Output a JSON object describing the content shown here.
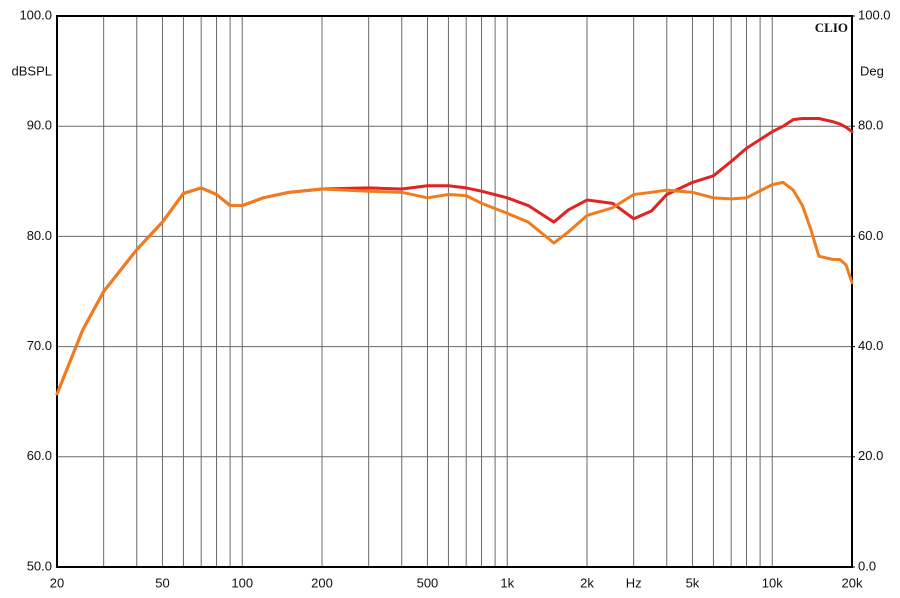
{
  "chart_data": {
    "type": "line",
    "annotation": "CLIO",
    "y_label": "dBSPL",
    "y2_label": "Deg",
    "log_x": true,
    "grid": true,
    "xlim": [
      20,
      20000
    ],
    "xticks": [
      20,
      50,
      100,
      200,
      500,
      {
        "value": 1000,
        "label": "1k"
      },
      {
        "value": 2000,
        "label": "2k"
      },
      {
        "value": 3000,
        "label": "Hz"
      },
      {
        "value": 5000,
        "label": "5k"
      },
      {
        "value": 10000,
        "label": "10k"
      },
      {
        "value": 20000,
        "label": "20k"
      }
    ],
    "xminor": [
      30,
      40,
      60,
      70,
      80,
      90,
      300,
      400,
      600,
      700,
      800,
      900,
      4000,
      6000,
      7000,
      8000,
      9000
    ],
    "ylim": [
      50,
      100
    ],
    "yticks": [
      {
        "value": 50,
        "label": "50.0"
      },
      {
        "value": 60,
        "label": "60.0"
      },
      {
        "value": 70,
        "label": "70.0"
      },
      {
        "value": 80,
        "label": "80.0"
      },
      {
        "value": 90,
        "label": "90.0"
      },
      {
        "value": 100,
        "label": "100.0"
      }
    ],
    "y2lim": [
      0,
      100
    ],
    "y2ticks": [
      {
        "value": 0,
        "label": "0.0"
      },
      {
        "value": 20,
        "label": "20.0"
      },
      {
        "value": 40,
        "label": "40.0"
      },
      {
        "value": 60,
        "label": "60.0"
      },
      {
        "value": 80,
        "label": "80.0"
      },
      {
        "value": 100,
        "label": "100.0"
      }
    ],
    "x": [
      20,
      25,
      30,
      40,
      50,
      60,
      70,
      80,
      90,
      100,
      120,
      150,
      200,
      300,
      400,
      500,
      600,
      700,
      800,
      1000,
      1200,
      1500,
      1700,
      2000,
      2500,
      3000,
      3500,
      4000,
      5000,
      6000,
      7000,
      8000,
      10000,
      11000,
      12000,
      13000,
      14000,
      15000,
      17000,
      18000,
      19000,
      20000
    ],
    "series": [
      {
        "color": "#e02424",
        "values": [
          65.7,
          71.5,
          75,
          78.8,
          81.3,
          83.9,
          84.4,
          83.8,
          82.8,
          82.8,
          83.5,
          84,
          84.3,
          84.4,
          84.3,
          84.6,
          84.6,
          84.4,
          84.1,
          83.5,
          82.8,
          81.3,
          82.4,
          83.3,
          83,
          81.6,
          82.3,
          83.8,
          84.9,
          85.5,
          86.8,
          88,
          89.5,
          90,
          90.6,
          90.7,
          90.7,
          90.7,
          90.4,
          90.2,
          89.9,
          89.5
        ]
      },
      {
        "color": "#f07c1e",
        "values": [
          65.7,
          71.5,
          75,
          78.8,
          81.3,
          83.9,
          84.4,
          83.8,
          82.8,
          82.8,
          83.5,
          84,
          84.3,
          84.1,
          84,
          83.5,
          83.8,
          83.7,
          83,
          82.1,
          81.3,
          79.4,
          80.4,
          81.9,
          82.6,
          83.8,
          84,
          84.2,
          84,
          83.5,
          83.4,
          83.5,
          84.7,
          84.9,
          84.2,
          82.8,
          80.6,
          78.2,
          77.9,
          77.9,
          77.4,
          75.8
        ]
      }
    ]
  }
}
